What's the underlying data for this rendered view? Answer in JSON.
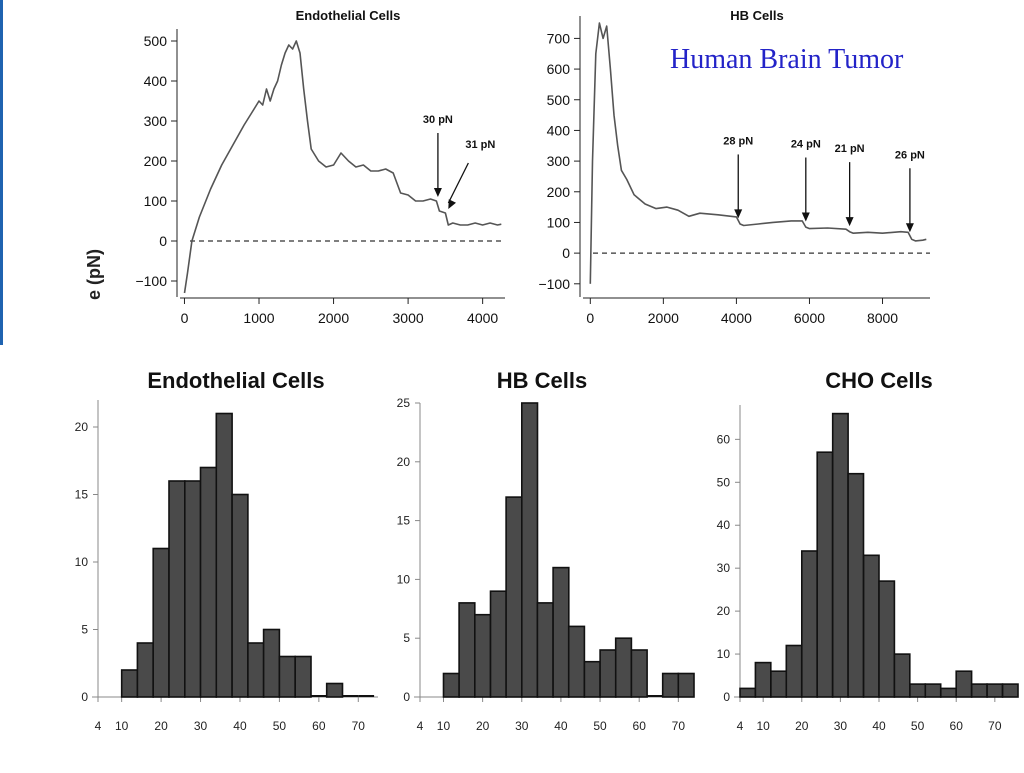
{
  "caption": "Human Brain Tumor",
  "ylabel_fragment": "e (pN)",
  "colors": {
    "caption": "#2323c8",
    "accent_bar": "#1f63b0",
    "bar_fill": "#4a4a4a",
    "trace": "#555555"
  },
  "chart_data": [
    {
      "type": "line",
      "title": "Endothelial Cells",
      "ylabel": "e (pN)",
      "xlim": [
        -60,
        4300
      ],
      "ylim": [
        -130,
        520
      ],
      "xticks": [
        0,
        1000,
        2000,
        3000,
        4000
      ],
      "yticks": [
        -100,
        0,
        100,
        200,
        300,
        400,
        500
      ],
      "baseline": 0,
      "series": [
        {
          "x": [
            0,
            40,
            100,
            200,
            350,
            500,
            650,
            800,
            900,
            1000,
            1050,
            1100,
            1150,
            1200,
            1250,
            1300,
            1350,
            1400,
            1450,
            1500,
            1550,
            1600,
            1650,
            1700,
            1800,
            1900,
            2000,
            2100,
            2200,
            2300,
            2400,
            2500,
            2600,
            2700,
            2800,
            2900,
            3000,
            3100,
            3200,
            3300,
            3380,
            3420,
            3500,
            3540,
            3600,
            3700,
            3800,
            3900,
            4000,
            4100,
            4200,
            4250
          ],
          "y": [
            -130,
            -80,
            0,
            60,
            130,
            190,
            240,
            290,
            320,
            350,
            340,
            380,
            350,
            380,
            400,
            440,
            470,
            490,
            480,
            500,
            470,
            380,
            300,
            230,
            200,
            185,
            190,
            220,
            200,
            185,
            190,
            175,
            175,
            180,
            170,
            120,
            115,
            100,
            100,
            105,
            100,
            75,
            70,
            40,
            45,
            40,
            40,
            45,
            40,
            45,
            40,
            42
          ]
        }
      ],
      "annotations": [
        {
          "label": "30 pN",
          "x": 3400,
          "y": 100
        },
        {
          "label": "31 pN",
          "x": 3540,
          "y": 70
        }
      ]
    },
    {
      "type": "line",
      "title": "HB Cells",
      "xlim": [
        -200,
        9300
      ],
      "ylim": [
        -130,
        760
      ],
      "xticks": [
        0,
        2000,
        4000,
        6000,
        8000
      ],
      "yticks": [
        -100,
        0,
        100,
        200,
        300,
        400,
        500,
        600,
        700
      ],
      "baseline": 0,
      "series": [
        {
          "x": [
            0,
            60,
            150,
            250,
            350,
            450,
            550,
            650,
            750,
            850,
            1000,
            1200,
            1500,
            1800,
            2100,
            2400,
            2700,
            3000,
            3500,
            4000,
            4100,
            4200,
            4600,
            5000,
            5500,
            5800,
            5900,
            6000,
            6500,
            7000,
            7100,
            7200,
            7600,
            8000,
            8500,
            8700,
            8800,
            8900,
            9100,
            9200
          ],
          "y": [
            -100,
            300,
            650,
            750,
            700,
            740,
            600,
            450,
            350,
            270,
            240,
            190,
            160,
            145,
            150,
            140,
            120,
            130,
            125,
            118,
            95,
            90,
            95,
            100,
            105,
            105,
            85,
            80,
            82,
            78,
            70,
            65,
            68,
            65,
            70,
            68,
            45,
            40,
            42,
            45
          ]
        }
      ],
      "annotations": [
        {
          "label": "28 pN",
          "x": 4050,
          "y": 100
        },
        {
          "label": "24 pN",
          "x": 5900,
          "y": 90
        },
        {
          "label": "21 pN",
          "x": 7100,
          "y": 75
        },
        {
          "label": "26 pN",
          "x": 8750,
          "y": 55
        }
      ]
    },
    {
      "type": "bar",
      "title": "Endothelial Cells",
      "bin_start": 10,
      "bin_width": 4,
      "values": [
        2,
        4,
        11,
        16,
        16,
        17,
        21,
        15,
        4,
        5,
        3,
        3,
        0,
        1,
        0,
        0
      ],
      "xlim": [
        4,
        75
      ],
      "ylim": [
        0,
        22
      ],
      "xticks": [
        4,
        10,
        20,
        30,
        40,
        50,
        60,
        70
      ],
      "yticks": [
        0,
        5,
        10,
        15,
        20
      ]
    },
    {
      "type": "bar",
      "title": "HB Cells",
      "bin_start": 10,
      "bin_width": 4,
      "values": [
        2,
        8,
        7,
        9,
        17,
        25,
        8,
        11,
        6,
        3,
        4,
        5,
        4,
        0,
        2,
        2
      ],
      "xlim": [
        4,
        74
      ],
      "ylim": [
        0,
        25
      ],
      "xticks": [
        4,
        10,
        20,
        30,
        40,
        50,
        60,
        70
      ],
      "yticks": [
        0,
        5,
        10,
        15,
        20,
        25
      ]
    },
    {
      "type": "bar",
      "title": "CHO Cells",
      "bin_start": 4,
      "bin_width": 4,
      "values": [
        2,
        8,
        6,
        12,
        34,
        57,
        66,
        52,
        33,
        27,
        10,
        3,
        3,
        2,
        6,
        3,
        3,
        3
      ],
      "xlim": [
        4,
        76
      ],
      "ylim": [
        0,
        68
      ],
      "xticks": [
        4,
        10,
        20,
        30,
        40,
        50,
        60,
        70
      ],
      "yticks": [
        0,
        10,
        20,
        30,
        40,
        50,
        60
      ]
    }
  ]
}
